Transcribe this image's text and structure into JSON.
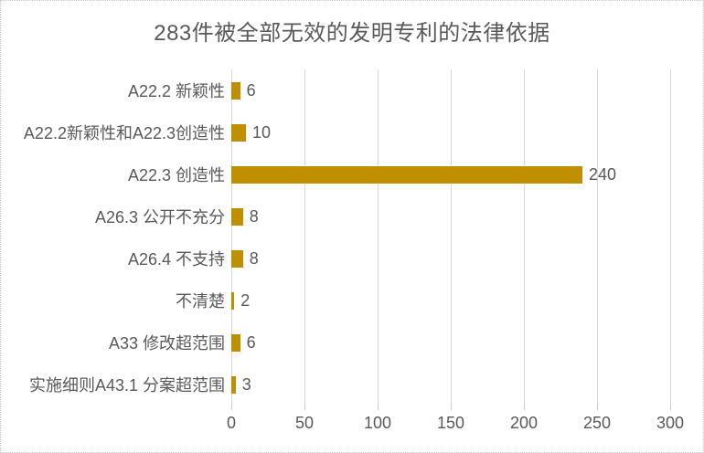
{
  "chart": {
    "colors": {
      "bar": "#bf8f00",
      "gridline": "#d9d9d9",
      "text": "#595959",
      "border": "#c9c9c9",
      "background": "#ffffff"
    }
  },
  "chart_data": {
    "type": "bar",
    "orientation": "horizontal",
    "title": "283件被全部无效的发明专利的法律依据",
    "categories": [
      "A22.2 新颖性",
      "A22.2新颖性和A22.3创造性",
      "A22.3 创造性",
      "A26.3 公开不充分",
      "A26.4 不支持",
      "不清楚",
      "A33 修改超范围",
      "实施细则A43.1 分案超范围"
    ],
    "values": [
      6,
      10,
      240,
      8,
      8,
      2,
      6,
      3
    ],
    "data_labels": [
      "6",
      "10",
      "240",
      "8",
      "8",
      "2",
      "6",
      "3"
    ],
    "xlabel": "",
    "ylabel": "",
    "xlim": [
      0,
      300
    ],
    "x_ticks": [
      0,
      50,
      100,
      150,
      200,
      250,
      300
    ],
    "grid": "vertical",
    "legend": "none"
  }
}
